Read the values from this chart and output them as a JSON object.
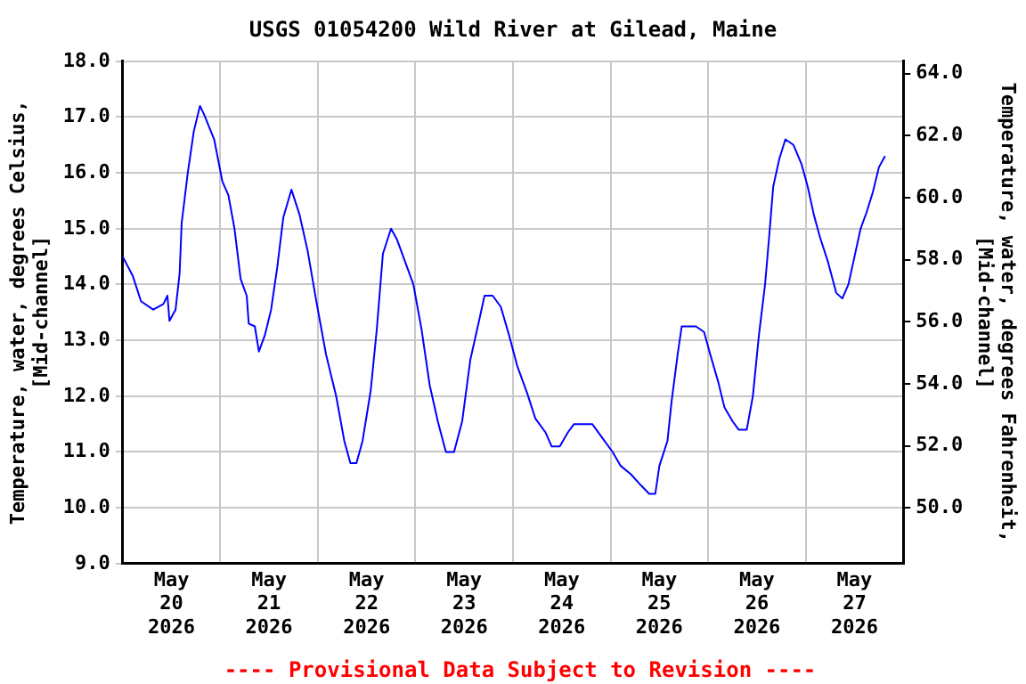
{
  "chart_data": {
    "type": "line",
    "title": "USGS 01054200 Wild River at Gilead, Maine",
    "ylabel": "Temperature, water, degrees Celsius,\n[Mid-channel]",
    "y2label": "Temperature, water, degrees Fahrenheit,\n[Mid-channel]",
    "annotations": [
      "---- Provisional Data Subject to Revision ----"
    ],
    "x": [
      "2026-05-20T00:00",
      "2026-05-20T02:30",
      "2026-05-20T04:30",
      "2026-05-20T07:30",
      "2026-05-20T10:00",
      "2026-05-20T11:00",
      "2026-05-20T11:30",
      "2026-05-20T13:00",
      "2026-05-20T14:00",
      "2026-05-20T14:30",
      "2026-05-20T16:00",
      "2026-05-20T17:30",
      "2026-05-20T19:00",
      "2026-05-20T20:00",
      "2026-05-20T22:30",
      "2026-05-21T00:30",
      "2026-05-21T02:00",
      "2026-05-21T03:30",
      "2026-05-21T05:00",
      "2026-05-21T06:30",
      "2026-05-21T07:00",
      "2026-05-21T08:30",
      "2026-05-21T09:30",
      "2026-05-21T11:00",
      "2026-05-21T12:30",
      "2026-05-21T14:00",
      "2026-05-21T15:30",
      "2026-05-21T17:30",
      "2026-05-21T19:30",
      "2026-05-21T21:30",
      "2026-05-21T23:30",
      "2026-05-22T02:00",
      "2026-05-22T04:30",
      "2026-05-22T06:30",
      "2026-05-22T08:00",
      "2026-05-22T09:30",
      "2026-05-22T11:00",
      "2026-05-22T13:00",
      "2026-05-22T14:30",
      "2026-05-22T16:00",
      "2026-05-22T18:00",
      "2026-05-22T19:30",
      "2026-05-22T22:00",
      "2026-05-22T23:30",
      "2026-05-23T01:30",
      "2026-05-23T03:30",
      "2026-05-23T05:30",
      "2026-05-23T07:30",
      "2026-05-23T09:30",
      "2026-05-23T11:30",
      "2026-05-23T13:30",
      "2026-05-23T15:30",
      "2026-05-23T17:00",
      "2026-05-23T19:00",
      "2026-05-23T21:00",
      "2026-05-23T23:00",
      "2026-05-24T01:00",
      "2026-05-24T03:30",
      "2026-05-24T05:30",
      "2026-05-24T08:00",
      "2026-05-24T09:30",
      "2026-05-24T11:30",
      "2026-05-24T13:30",
      "2026-05-24T15:00",
      "2026-05-24T19:30",
      "2026-05-24T22:00",
      "2026-05-25T00:30",
      "2026-05-25T02:30",
      "2026-05-25T05:00",
      "2026-05-25T07:30",
      "2026-05-25T09:30",
      "2026-05-25T11:00",
      "2026-05-25T12:00",
      "2026-05-25T14:00",
      "2026-05-25T15:00",
      "2026-05-25T16:30",
      "2026-05-25T17:30",
      "2026-05-25T21:00",
      "2026-05-25T23:00",
      "2026-05-26T00:30",
      "2026-05-26T02:30",
      "2026-05-26T04:00",
      "2026-05-26T06:00",
      "2026-05-26T07:30",
      "2026-05-26T09:30",
      "2026-05-26T11:00",
      "2026-05-26T12:30",
      "2026-05-26T14:00",
      "2026-05-26T15:00",
      "2026-05-26T16:00",
      "2026-05-26T17:30",
      "2026-05-26T19:00",
      "2026-05-26T21:00",
      "2026-05-26T23:00",
      "2026-05-27T00:30",
      "2026-05-27T02:00",
      "2026-05-27T03:30",
      "2026-05-27T05:30",
      "2026-05-27T07:30",
      "2026-05-27T09:00",
      "2026-05-27T10:30",
      "2026-05-27T12:00",
      "2026-05-27T13:30",
      "2026-05-27T15:00",
      "2026-05-27T16:30",
      "2026-05-27T18:00",
      "2026-05-27T19:30"
    ],
    "series": [
      {
        "color": "#0000ff",
        "values": [
          14.5,
          14.15,
          13.7,
          13.55,
          13.65,
          13.8,
          13.35,
          13.55,
          14.2,
          15.1,
          16.0,
          16.75,
          17.2,
          17.05,
          16.6,
          15.85,
          15.6,
          15.0,
          14.1,
          13.8,
          13.3,
          13.25,
          12.8,
          13.1,
          13.55,
          14.3,
          15.2,
          15.7,
          15.25,
          14.6,
          13.75,
          12.75,
          12.0,
          11.2,
          10.8,
          10.8,
          11.2,
          12.1,
          13.2,
          14.55,
          15.0,
          14.8,
          14.3,
          14.0,
          13.2,
          12.2,
          11.55,
          11.0,
          11.0,
          11.55,
          12.65,
          13.3,
          13.8,
          13.8,
          13.6,
          13.1,
          12.55,
          12.05,
          11.6,
          11.35,
          11.1,
          11.1,
          11.35,
          11.5,
          11.5,
          11.25,
          11.0,
          10.75,
          10.6,
          10.4,
          10.25,
          10.25,
          10.75,
          11.2,
          11.9,
          12.75,
          13.25,
          13.25,
          13.15,
          12.75,
          12.25,
          11.8,
          11.55,
          11.4,
          11.4,
          12.0,
          13.1,
          14.0,
          14.85,
          15.75,
          16.25,
          16.6,
          16.5,
          16.15,
          15.75,
          15.25,
          14.85,
          14.4,
          13.85,
          13.75,
          14.0,
          14.5,
          15.0,
          15.3,
          15.65,
          16.1,
          16.3
        ]
      }
    ],
    "xlim": [
      "2026-05-20",
      "2026-05-28"
    ],
    "xticks": [
      {
        "value": "2026-05-20T12:00",
        "label": "May 20 2026"
      },
      {
        "value": "2026-05-21",
        "label": null
      },
      {
        "value": "2026-05-21T12:00",
        "label": "May 21 2026"
      },
      {
        "value": "2026-05-22",
        "label": null
      },
      {
        "value": "2026-05-22T12:00",
        "label": "May 22 2026"
      },
      {
        "value": "2026-05-23",
        "label": null
      },
      {
        "value": "2026-05-23T12:00",
        "label": "May 23 2026"
      },
      {
        "value": "2026-05-24",
        "label": null
      },
      {
        "value": "2026-05-24T12:00",
        "label": "May 24 2026"
      },
      {
        "value": "2026-05-25",
        "label": null
      },
      {
        "value": "2026-05-25T12:00",
        "label": "May 25 2026"
      },
      {
        "value": "2026-05-26",
        "label": null
      },
      {
        "value": "2026-05-26T12:00",
        "label": "May 26 2026"
      },
      {
        "value": "2026-05-27",
        "label": null
      },
      {
        "value": "2026-05-27T12:00",
        "label": "May 27 2026"
      }
    ],
    "ylim": [
      9,
      18
    ],
    "yticks": [
      {
        "value": 9,
        "label": "9.0"
      },
      {
        "value": 10,
        "label": "10.0"
      },
      {
        "value": 11,
        "label": "11.0"
      },
      {
        "value": 12,
        "label": "12.0"
      },
      {
        "value": 13,
        "label": "13.0"
      },
      {
        "value": 14,
        "label": "14.0"
      },
      {
        "value": 15,
        "label": "15.0"
      },
      {
        "value": 16,
        "label": "16.0"
      },
      {
        "value": 17,
        "label": "17.0"
      },
      {
        "value": 18,
        "label": "18.0"
      }
    ],
    "y2lim": [
      48.2,
      64.4
    ],
    "y2ticks": [
      {
        "value": 50,
        "label": "50.0"
      },
      {
        "value": 52,
        "label": "52.0"
      },
      {
        "value": 54,
        "label": "54.0"
      },
      {
        "value": 56,
        "label": "56.0"
      },
      {
        "value": 58,
        "label": "58.0"
      },
      {
        "value": 60,
        "label": "60.0"
      },
      {
        "value": 62,
        "label": "62.0"
      },
      {
        "value": 64,
        "label": "64.0"
      }
    ],
    "grid": true,
    "legend": false,
    "marker": "none",
    "line_style": "solid"
  }
}
